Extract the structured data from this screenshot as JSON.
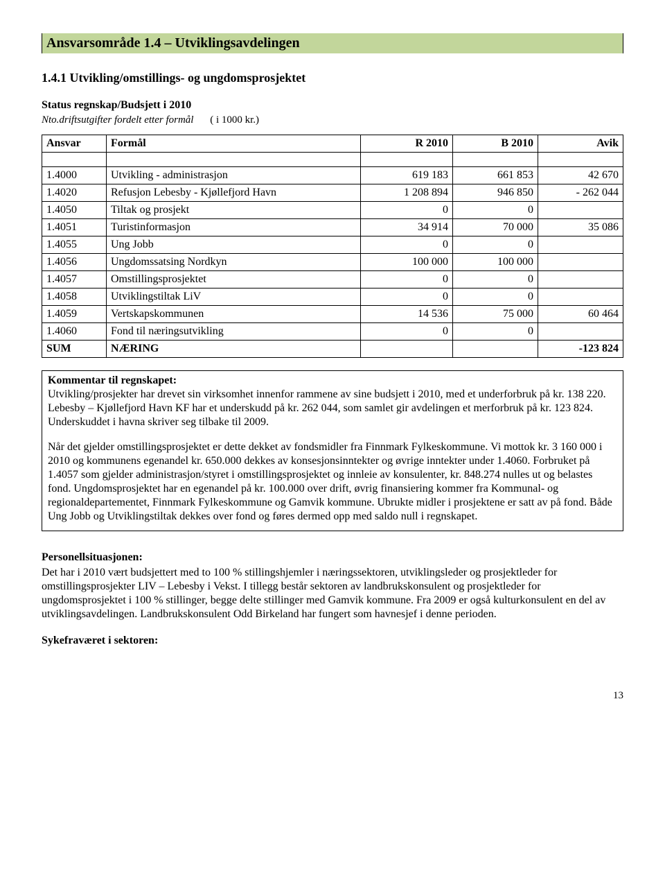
{
  "banner": "Ansvarsområde 1.4 – Utviklingsavdelingen",
  "subheading": "1.4.1 Utvikling/omstillings- og ungdomsprosjektet",
  "status_line": "Status regnskap/Budsjett i 2010",
  "note_italic": "Nto.driftsutgifter fordelt etter formål",
  "note_plain": "( i 1000 kr.)",
  "table": {
    "headers": {
      "c1": "Ansvar",
      "c2": "Formål",
      "c3": "R 2010",
      "c4": "B 2010",
      "c5": "Avik"
    },
    "rows": [
      {
        "code": "1.4000",
        "name": "Utvikling - administrasjon",
        "r": "619 183",
        "b": "661 853",
        "a": "42 670"
      },
      {
        "code": "1.4020",
        "name": "Refusjon Lebesby - Kjøllefjord Havn",
        "r": "1 208 894",
        "b": "946 850",
        "a": "- 262 044"
      },
      {
        "code": "1.4050",
        "name": "Tiltak og prosjekt",
        "r": "0",
        "b": "0",
        "a": ""
      },
      {
        "code": "1.4051",
        "name": "Turistinformasjon",
        "r": "34 914",
        "b": "70 000",
        "a": "35 086"
      },
      {
        "code": "1.4055",
        "name": "Ung Jobb",
        "r": "0",
        "b": "0",
        "a": ""
      },
      {
        "code": "1.4056",
        "name": "Ungdomssatsing Nordkyn",
        "r": "100 000",
        "b": "100 000",
        "a": ""
      },
      {
        "code": "1.4057",
        "name": "Omstillingsprosjektet",
        "r": "0",
        "b": "0",
        "a": ""
      },
      {
        "code": "1.4058",
        "name": "Utviklingstiltak LiV",
        "r": "0",
        "b": "0",
        "a": ""
      },
      {
        "code": "1.4059",
        "name": "Vertskapskommunen",
        "r": "14 536",
        "b": "75 000",
        "a": "60 464"
      },
      {
        "code": "1.4060",
        "name": "Fond til næringsutvikling",
        "r": "0",
        "b": "0",
        "a": ""
      }
    ],
    "sum": {
      "c1": "SUM",
      "c2": "NÆRING",
      "a": "-123 824"
    }
  },
  "comment": {
    "lead": "Kommentar til regnskapet:",
    "p1": "Utvikling/prosjekter har drevet sin virksomhet innenfor rammene av sine budsjett i 2010, med et underforbruk på kr. 138 220. Lebesby – Kjøllefjord Havn KF har et underskudd på kr. 262 044, som samlet gir avdelingen et merforbruk på kr. 123 824. Underskuddet i havna skriver seg tilbake til 2009.",
    "p2": "Når det gjelder omstillingsprosjektet er dette dekket av fondsmidler fra Finnmark Fylkeskommune. Vi mottok kr. 3 160 000 i 2010 og kommunens egenandel kr. 650.000 dekkes av konsesjonsinntekter og øvrige inntekter under 1.4060. Forbruket på 1.4057 som gjelder administrasjon/styret i omstillingsprosjektet og innleie av konsulenter, kr. 848.274 nulles ut og belastes fond. Ungdomsprosjektet har en egenandel på kr. 100.000 over drift, øvrig finansiering kommer fra Kommunal- og regionaldepartementet, Finnmark Fylkeskommune og Gamvik kommune. Ubrukte midler i prosjektene er satt av på fond. Både Ung Jobb og Utviklingstiltak dekkes over fond og føres dermed opp med saldo null i regnskapet."
  },
  "personnel": {
    "head": "Personellsituasjonen:",
    "body": "Det har i 2010 vært budsjettert med to 100 % stillingshjemler i næringssektoren, utviklingsleder og prosjektleder for omstillingsprosjekter LIV – Lebesby i Vekst. I tillegg består sektoren av landbrukskonsulent og prosjektleder for ungdomsprosjektet i 100 % stillinger, begge delte stillinger med Gamvik kommune. Fra 2009 er også kulturkonsulent en del av utviklingsavdelingen. Landbrukskonsulent Odd Birkeland har fungert som havnesjef i denne perioden."
  },
  "sick_head": "Sykefraværet i sektoren:",
  "page_number": "13"
}
